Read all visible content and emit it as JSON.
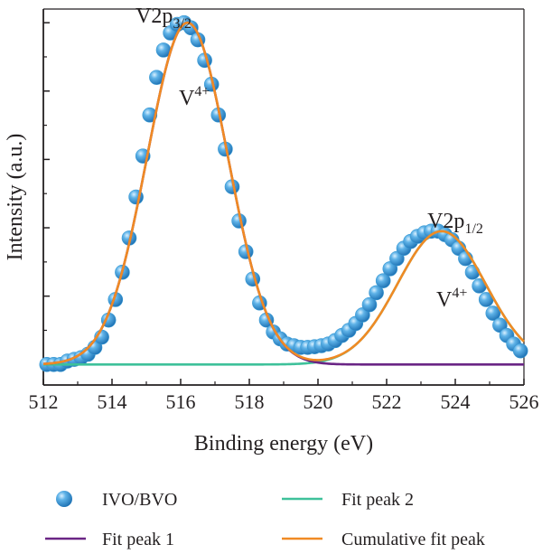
{
  "chart_data": {
    "type": "scatter",
    "xlabel": "Binding energy (eV)",
    "ylabel": "Intensity (a.u.)",
    "xlim": [
      512,
      526
    ],
    "ylim": [
      -0.06,
      1.04
    ],
    "x_ticks": [
      "512",
      "514",
      "516",
      "518",
      "520",
      "522",
      "524",
      "526"
    ],
    "y_ticks_labeled": false,
    "grid": false,
    "annotations": [
      {
        "id": "p32",
        "main": "V2p",
        "sub": "3/2",
        "x": 515.5,
        "y": 1.0
      },
      {
        "id": "v4a",
        "main": "V",
        "sup": "4+",
        "x": 516.4,
        "y": 0.76
      },
      {
        "id": "p12",
        "main": "V2p",
        "sub": "1/2",
        "x": 524.0,
        "y": 0.4
      },
      {
        "id": "v4b",
        "main": "V",
        "sup": "4+",
        "x": 523.9,
        "y": 0.17
      }
    ],
    "series": [
      {
        "name": "IVO/BVO",
        "kind": "markers",
        "color": "#3a9bd5",
        "x": [
          512.1,
          512.3,
          512.5,
          512.7,
          512.9,
          513.1,
          513.3,
          513.5,
          513.7,
          513.9,
          514.1,
          514.3,
          514.5,
          514.7,
          514.9,
          515.1,
          515.3,
          515.5,
          515.7,
          515.9,
          516.1,
          516.3,
          516.5,
          516.7,
          516.9,
          517.1,
          517.3,
          517.5,
          517.7,
          517.9,
          518.1,
          518.3,
          518.5,
          518.7,
          518.9,
          519.1,
          519.3,
          519.5,
          519.7,
          519.9,
          520.1,
          520.3,
          520.5,
          520.7,
          520.9,
          521.1,
          521.3,
          521.5,
          521.7,
          521.9,
          522.1,
          522.3,
          522.5,
          522.7,
          522.9,
          523.1,
          523.3,
          523.5,
          523.7,
          523.9,
          524.1,
          524.3,
          524.5,
          524.7,
          524.9,
          525.1,
          525.3,
          525.5,
          525.7,
          525.9
        ],
        "y": [
          0.0,
          0.0,
          0.0,
          0.01,
          0.015,
          0.02,
          0.03,
          0.05,
          0.08,
          0.13,
          0.19,
          0.27,
          0.37,
          0.49,
          0.61,
          0.73,
          0.84,
          0.92,
          0.97,
          0.995,
          1.0,
          0.985,
          0.95,
          0.89,
          0.82,
          0.73,
          0.63,
          0.52,
          0.42,
          0.33,
          0.25,
          0.18,
          0.13,
          0.095,
          0.075,
          0.06,
          0.055,
          0.05,
          0.05,
          0.052,
          0.055,
          0.06,
          0.07,
          0.085,
          0.1,
          0.12,
          0.145,
          0.175,
          0.21,
          0.245,
          0.28,
          0.31,
          0.34,
          0.36,
          0.375,
          0.385,
          0.39,
          0.39,
          0.38,
          0.365,
          0.34,
          0.31,
          0.27,
          0.23,
          0.19,
          0.15,
          0.115,
          0.085,
          0.06,
          0.04
        ]
      },
      {
        "name": "Fit peak 1",
        "kind": "gaussian",
        "color": "#6a2585",
        "center": 516.2,
        "sigma": 1.18,
        "amplitude": 1.0
      },
      {
        "name": "Fit peak 2",
        "kind": "gaussian",
        "color": "#3ec19a",
        "center": 523.6,
        "sigma": 1.28,
        "amplitude": 0.39
      },
      {
        "name": "Cumulative fit peak",
        "kind": "sum",
        "color": "#f08a24"
      }
    ]
  }
}
